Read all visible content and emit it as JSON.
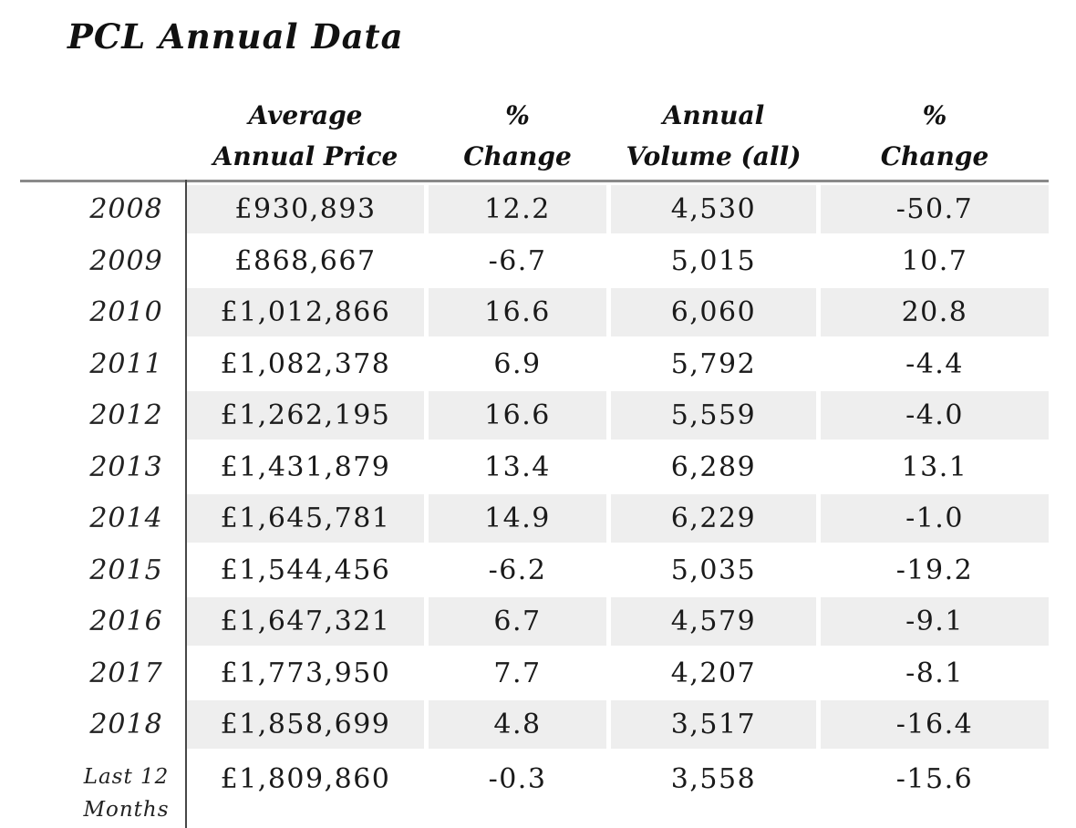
{
  "title": "PCL Annual Data",
  "chart_data": {
    "type": "table",
    "title": "PCL Annual Data",
    "columns": [
      "",
      "Average Annual Price",
      "% Change",
      "Annual Volume (all)",
      "% Change"
    ],
    "header_lines": [
      [
        "",
        ""
      ],
      [
        "Average",
        "Annual Price"
      ],
      [
        "%",
        "Change"
      ],
      [
        "Annual",
        "Volume (all)"
      ],
      [
        "%",
        "Change"
      ]
    ],
    "rows": [
      {
        "year": "2008",
        "price": "£930,893",
        "price_pct_change": "12.2",
        "volume": "4,530",
        "volume_pct_change": "-50.7",
        "shaded": true
      },
      {
        "year": "2009",
        "price": "£868,667",
        "price_pct_change": "-6.7",
        "volume": "5,015",
        "volume_pct_change": "10.7",
        "shaded": false
      },
      {
        "year": "2010",
        "price": "£1,012,866",
        "price_pct_change": "16.6",
        "volume": "6,060",
        "volume_pct_change": "20.8",
        "shaded": true
      },
      {
        "year": "2011",
        "price": "£1,082,378",
        "price_pct_change": "6.9",
        "volume": "5,792",
        "volume_pct_change": "-4.4",
        "shaded": false
      },
      {
        "year": "2012",
        "price": "£1,262,195",
        "price_pct_change": "16.6",
        "volume": "5,559",
        "volume_pct_change": "-4.0",
        "shaded": true
      },
      {
        "year": "2013",
        "price": "£1,431,879",
        "price_pct_change": "13.4",
        "volume": "6,289",
        "volume_pct_change": "13.1",
        "shaded": false
      },
      {
        "year": "2014",
        "price": "£1,645,781",
        "price_pct_change": "14.9",
        "volume": "6,229",
        "volume_pct_change": "-1.0",
        "shaded": true
      },
      {
        "year": "2015",
        "price": "£1,544,456",
        "price_pct_change": "-6.2",
        "volume": "5,035",
        "volume_pct_change": "-19.2",
        "shaded": false
      },
      {
        "year": "2016",
        "price": "£1,647,321",
        "price_pct_change": "6.7",
        "volume": "4,579",
        "volume_pct_change": "-9.1",
        "shaded": true
      },
      {
        "year": "2017",
        "price": "£1,773,950",
        "price_pct_change": "7.7",
        "volume": "4,207",
        "volume_pct_change": "-8.1",
        "shaded": false
      },
      {
        "year": "2018",
        "price": "£1,858,699",
        "price_pct_change": "4.8",
        "volume": "3,517",
        "volume_pct_change": "-16.4",
        "shaded": true
      },
      {
        "year": "Last 12 Months",
        "price": "£1,809,860",
        "price_pct_change": "-0.3",
        "volume": "3,558",
        "volume_pct_change": "-15.6",
        "shaded": false
      }
    ],
    "layout": {
      "shaded_row_color": "#eeeeee",
      "rule_color": "#8a8a8a",
      "divider_color": "#474747",
      "background": "#ffffff"
    }
  }
}
